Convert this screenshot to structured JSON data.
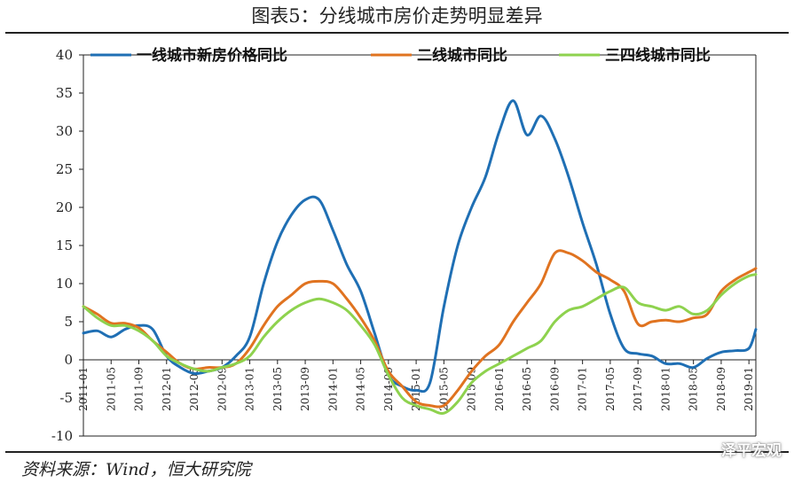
{
  "page": {
    "title": "图表5：分线城市房价走势明显差异",
    "source": "资料来源：Wind，恒大研究院",
    "watermark": "泽平宏观"
  },
  "chart_data": {
    "type": "line",
    "title": "图表5：分线城市房价走势明显差异",
    "xlabel": "",
    "ylabel": "",
    "ylim": [
      -10,
      40
    ],
    "yticks": [
      -10,
      -5,
      0,
      5,
      10,
      15,
      20,
      25,
      30,
      35,
      40
    ],
    "grid": false,
    "legend_position": "top",
    "x_tick_labels": [
      "2011-01",
      "2011-05",
      "2011-09",
      "2012-01",
      "2012-05",
      "2012-09",
      "2013-01",
      "2013-05",
      "2013-09",
      "2014-01",
      "2014-05",
      "2014-09",
      "2015-01",
      "2015-05",
      "2015-09",
      "2016-01",
      "2016-05",
      "2016-09",
      "2017-01",
      "2017-05",
      "2017-09",
      "2018-01",
      "2018-05",
      "2018-09",
      "2019-01"
    ],
    "x_months": [
      "2011-01",
      "2011-03",
      "2011-05",
      "2011-07",
      "2011-09",
      "2011-11",
      "2012-01",
      "2012-03",
      "2012-05",
      "2012-07",
      "2012-09",
      "2012-11",
      "2013-01",
      "2013-03",
      "2013-05",
      "2013-07",
      "2013-09",
      "2013-11",
      "2014-01",
      "2014-03",
      "2014-05",
      "2014-07",
      "2014-09",
      "2014-11",
      "2015-01",
      "2015-03",
      "2015-05",
      "2015-07",
      "2015-09",
      "2015-11",
      "2016-01",
      "2016-03",
      "2016-05",
      "2016-07",
      "2016-09",
      "2016-11",
      "2017-01",
      "2017-03",
      "2017-05",
      "2017-07",
      "2017-09",
      "2017-11",
      "2018-01",
      "2018-03",
      "2018-05",
      "2018-07",
      "2018-09",
      "2018-11",
      "2019-01",
      "2019-02"
    ],
    "series": [
      {
        "name": "一线城市新房价格同比",
        "color": "#1f6fb4",
        "values": [
          3.5,
          3.8,
          3.0,
          4.0,
          4.5,
          4.0,
          0.5,
          -1.0,
          -1.8,
          -1.5,
          -1.0,
          0.5,
          3.0,
          10.0,
          15.5,
          19.0,
          21.0,
          21.0,
          17.0,
          12.5,
          9.0,
          3.5,
          -2.0,
          -3.5,
          -4.0,
          -3.0,
          7.0,
          15.0,
          20.0,
          24.0,
          30.0,
          34.0,
          29.5,
          32.0,
          29.0,
          24.0,
          18.0,
          12.5,
          6.0,
          1.5,
          0.8,
          0.5,
          -0.5,
          -0.5,
          -1.0,
          0.2,
          1.0,
          1.2,
          1.5,
          4.0
        ]
      },
      {
        "name": "二线城市同比",
        "color": "#e07320",
        "values": [
          7.0,
          6.0,
          4.8,
          4.8,
          4.2,
          2.5,
          1.0,
          -0.5,
          -1.2,
          -1.0,
          -1.0,
          -0.5,
          1.5,
          4.5,
          7.0,
          8.5,
          10.0,
          10.3,
          10.0,
          8.0,
          5.5,
          2.5,
          -1.5,
          -3.5,
          -5.5,
          -6.0,
          -6.0,
          -4.0,
          -1.5,
          0.5,
          2.0,
          5.0,
          7.5,
          10.0,
          14.0,
          14.0,
          13.0,
          11.5,
          10.5,
          9.0,
          4.7,
          5.0,
          5.2,
          5.0,
          5.5,
          6.0,
          9.0,
          10.5,
          11.5,
          12.0
        ]
      },
      {
        "name": "三四线城市同比",
        "color": "#8ed24e",
        "values": [
          7.0,
          5.5,
          4.5,
          4.5,
          3.8,
          2.5,
          0.5,
          -0.5,
          -1.2,
          -1.5,
          -1.0,
          -0.5,
          0.5,
          3.0,
          5.0,
          6.5,
          7.5,
          8.0,
          7.5,
          6.5,
          4.5,
          2.0,
          -2.0,
          -5.0,
          -6.0,
          -6.5,
          -7.0,
          -5.5,
          -3.0,
          -1.5,
          -0.5,
          0.5,
          1.5,
          2.5,
          5.0,
          6.5,
          7.0,
          8.0,
          9.0,
          9.5,
          7.5,
          7.0,
          6.5,
          7.0,
          6.0,
          6.5,
          8.5,
          10.0,
          11.0,
          11.2
        ]
      }
    ]
  }
}
